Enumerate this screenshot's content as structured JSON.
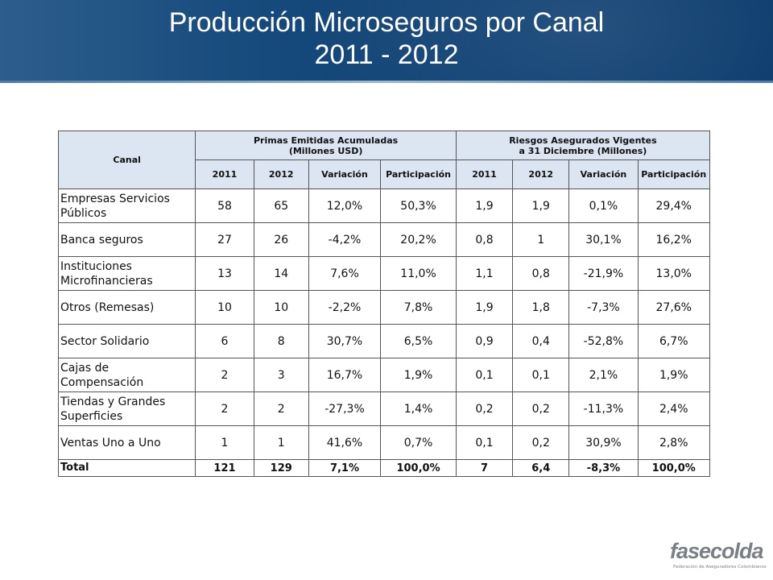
{
  "header": {
    "title_line1": "Producción Microseguros por Canal",
    "title_line2": "2011 - 2012"
  },
  "table": {
    "canal_header": "Canal",
    "group1_line1": "Primas Emitidas Acumuladas",
    "group1_line2": "(Millones USD)",
    "group2_line1": "Riesgos Asegurados Vigentes",
    "group2_line2": "a 31 Diciembre (Millones)",
    "sub": [
      "2011",
      "2012",
      "Variación",
      "Participación",
      "2011",
      "2012",
      "Variación",
      "Participación"
    ],
    "rows": [
      {
        "l1": "Empresas Servicios",
        "l2": "Públicos",
        "v": [
          "58",
          "65",
          "12,0%",
          "50,3%",
          "1,9",
          "1,9",
          "0,1%",
          "29,4%"
        ]
      },
      {
        "l1": "Banca seguros",
        "l2": "",
        "v": [
          "27",
          "26",
          "-4,2%",
          "20,2%",
          "0,8",
          "1",
          "30,1%",
          "16,2%"
        ]
      },
      {
        "l1": "Instituciones",
        "l2": "Microfinancieras",
        "v": [
          "13",
          "14",
          "7,6%",
          "11,0%",
          "1,1",
          "0,8",
          "-21,9%",
          "13,0%"
        ]
      },
      {
        "l1": "Otros (Remesas)",
        "l2": "",
        "v": [
          "10",
          "10",
          "-2,2%",
          "7,8%",
          "1,9",
          "1,8",
          "-7,3%",
          "27,6%"
        ]
      },
      {
        "l1": "Sector Solidario",
        "l2": "",
        "v": [
          "6",
          "8",
          "30,7%",
          "6,5%",
          "0,9",
          "0,4",
          "-52,8%",
          "6,7%"
        ]
      },
      {
        "l1": "Cajas de",
        "l2": "Compensación",
        "v": [
          "2",
          "3",
          "16,7%",
          "1,9%",
          "0,1",
          "0,1",
          "2,1%",
          "1,9%"
        ]
      },
      {
        "l1": "Tiendas y Grandes",
        "l2": "Superficies",
        "v": [
          "2",
          "2",
          "-27,3%",
          "1,4%",
          "0,2",
          "0,2",
          "-11,3%",
          "2,4%"
        ]
      },
      {
        "l1": "Ventas Uno a Uno",
        "l2": "",
        "v": [
          "1",
          "1",
          "41,6%",
          "0,7%",
          "0,1",
          "0,2",
          "30,9%",
          "2,8%"
        ]
      }
    ],
    "total": {
      "label": "Total",
      "v": [
        "121",
        "129",
        "7,1%",
        "100,0%",
        "7",
        "6,4",
        "-8,3%",
        "100,0%"
      ]
    }
  },
  "logo": {
    "name": "fasecolda",
    "subtitle": "Federación de Aseguradores Colombianos"
  }
}
